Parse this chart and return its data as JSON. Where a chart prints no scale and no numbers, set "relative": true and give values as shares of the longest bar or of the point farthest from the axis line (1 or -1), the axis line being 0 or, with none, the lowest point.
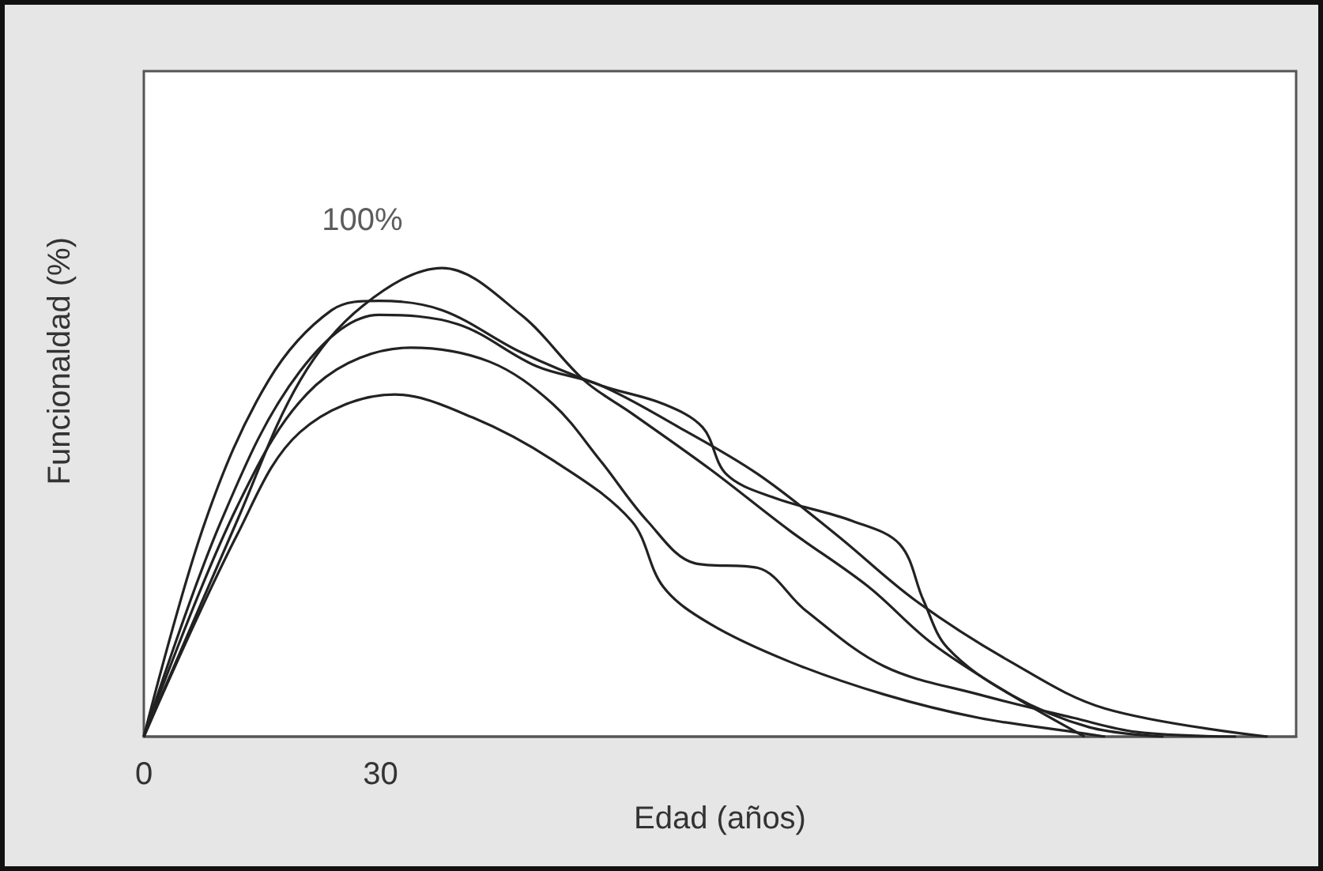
{
  "chart_data": {
    "type": "line",
    "xlabel": "Edad (años)",
    "ylabel": "Funcionaldad (%)",
    "relative": true,
    "xlim": [
      0,
      146
    ],
    "xticks": [
      0,
      30
    ],
    "tick_labels": "x",
    "grid": false,
    "marker": "none",
    "annotations": [
      {
        "text": "100%",
        "x": 37.8,
        "y": 1
      }
    ],
    "series": [
      {
        "color": "#222222",
        "x": [
          0,
          11.8,
          19.8,
          27.8,
          37.8,
          47.8,
          55.8,
          61.8,
          71.8,
          81.8,
          91.8,
          99.8,
          109.8,
          119.2
        ],
        "values": [
          0,
          0.46,
          0.76,
          0.92,
          1,
          0.9,
          0.76,
          0.69,
          0.57,
          0.44,
          0.32,
          0.2,
          0.09,
          0
        ]
      },
      {
        "color": "#222222",
        "x": [
          0,
          7.8,
          15.8,
          23.8,
          29.8,
          37.8,
          47.8,
          57.8,
          65.8,
          70.8,
          73.8,
          79.8,
          89.8,
          95.8,
          98.8,
          101.8,
          109.8,
          119.8,
          129.2
        ],
        "values": [
          0,
          0.46,
          0.76,
          0.91,
          0.93,
          0.91,
          0.82,
          0.75,
          0.71,
          0.66,
          0.56,
          0.51,
          0.46,
          0.41,
          0.29,
          0.19,
          0.09,
          0.02,
          0
        ]
      },
      {
        "color": "#222222",
        "x": [
          0,
          9.8,
          19.8,
          29.8,
          39.8,
          49.8,
          57.8,
          67.8,
          77.8,
          87.8,
          97.8,
          109.8,
          121.8,
          142.4
        ],
        "values": [
          0,
          0.46,
          0.78,
          0.9,
          0.88,
          0.79,
          0.75,
          0.66,
          0.56,
          0.43,
          0.29,
          0.16,
          0.06,
          0
        ]
      },
      {
        "color": "#222222",
        "x": [
          0,
          11.8,
          21.8,
          33.8,
          43.8,
          51.8,
          57.8,
          63.8,
          69.8,
          77.8,
          83.8,
          93.8,
          105.8,
          117.8,
          125.8,
          138.4
        ],
        "values": [
          0,
          0.49,
          0.75,
          0.83,
          0.8,
          0.71,
          0.59,
          0.46,
          0.37,
          0.36,
          0.27,
          0.15,
          0.09,
          0.04,
          0.01,
          0
        ]
      },
      {
        "color": "#222222",
        "x": [
          0,
          11.8,
          19.8,
          31.8,
          41.8,
          51.8,
          61.8,
          65.8,
          71.8,
          81.8,
          93.8,
          105.8,
          117.8,
          121.8
        ],
        "values": [
          0,
          0.43,
          0.65,
          0.73,
          0.68,
          0.59,
          0.46,
          0.32,
          0.24,
          0.16,
          0.09,
          0.04,
          0.01,
          0
        ]
      }
    ]
  }
}
